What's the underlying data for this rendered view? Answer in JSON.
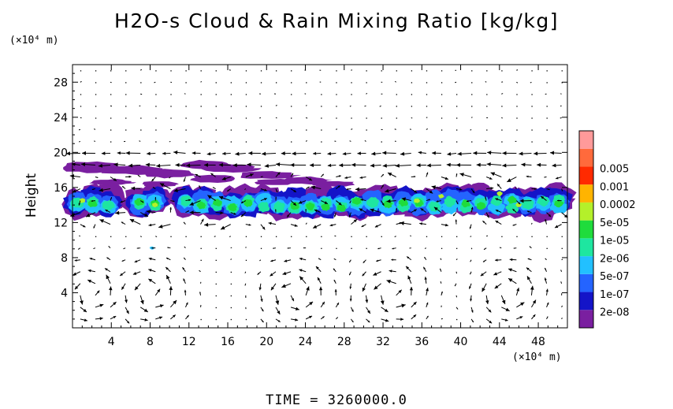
{
  "chart_data": {
    "type": "heatmap",
    "title": "H2O-s Cloud & Rain Mixing Ratio [kg/kg]",
    "ylabel": "Height",
    "y_unit": "(×10⁴ m)",
    "x_unit": "(×10⁴ m)",
    "footer": "TIME = 3260000.0",
    "x_range": [
      0,
      51
    ],
    "y_range": [
      0,
      30
    ],
    "x_ticks": [
      4,
      8,
      12,
      16,
      20,
      24,
      28,
      32,
      36,
      40,
      44,
      48
    ],
    "y_ticks": [
      4,
      8,
      12,
      16,
      20,
      24,
      28
    ],
    "colorbar": {
      "labels": [
        "2e-08",
        "1e-07",
        "5e-07",
        "2e-06",
        "1e-05",
        "5e-05",
        "0.0002",
        "0.001",
        "0.005"
      ],
      "colors": [
        "#7a1fa0",
        "#1414c8",
        "#2464ff",
        "#22c0ff",
        "#1ee6a0",
        "#1fdc3c",
        "#b4f02a",
        "#ffb400",
        "#ff2a00",
        "#ff6a3c",
        "#ff9a9a"
      ]
    },
    "layers": [
      {
        "name": "upper thin layer",
        "level": "2e-08",
        "y": [
          16,
          19
        ],
        "x": [
          0,
          30
        ]
      },
      {
        "name": "main cloud band",
        "level": "5e-05",
        "y": [
          12,
          16.5
        ],
        "x": [
          0,
          51
        ]
      }
    ],
    "wind_vectors": "velocity field arrows overlaid on the full domain"
  }
}
